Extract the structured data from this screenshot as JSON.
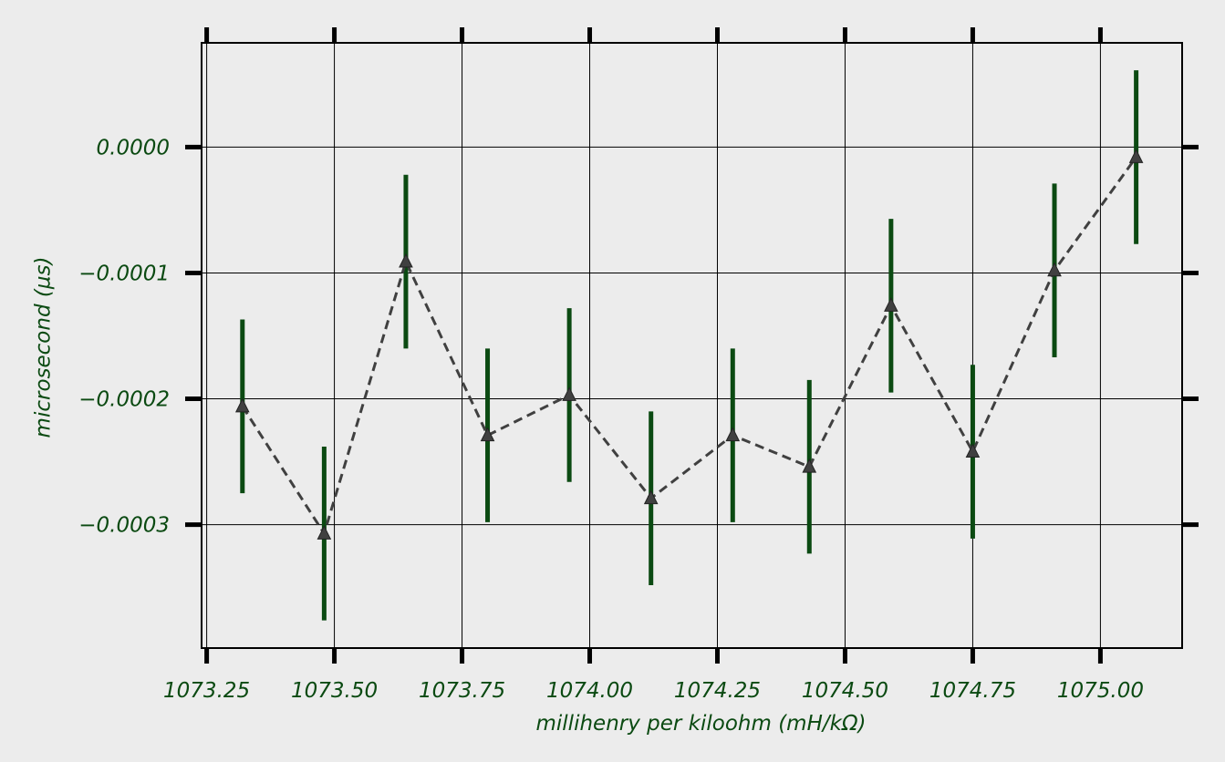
{
  "chart_data": {
    "type": "line",
    "title": "",
    "xlabel": "millihenry per kiloohm (mH/kΩ)",
    "ylabel": "microsecond (µs)",
    "xlim": [
      1073.24,
      1075.16
    ],
    "ylim": [
      -0.000398,
      8.28e-05
    ],
    "x_ticks": [
      1073.25,
      1073.5,
      1073.75,
      1074.0,
      1074.25,
      1074.5,
      1074.75,
      1075.0
    ],
    "x_tick_labels": [
      "1073.25",
      "1073.50",
      "1073.75",
      "1074.00",
      "1074.25",
      "1074.50",
      "1074.75",
      "1075.00"
    ],
    "y_ticks": [
      0.0,
      -0.0001,
      -0.0002,
      -0.0003
    ],
    "y_tick_labels": [
      "0.0000",
      "−0.0001",
      "−0.0002",
      "−0.0003"
    ],
    "grid": true,
    "series": [
      {
        "marker": "triangle",
        "line_style": "dashed",
        "x": [
          1073.32,
          1073.48,
          1073.64,
          1073.8,
          1073.96,
          1074.12,
          1074.28,
          1074.43,
          1074.59,
          1074.75,
          1074.91,
          1075.07
        ],
        "y": [
          -0.000206,
          -0.000307,
          -9.1e-05,
          -0.000229,
          -0.000197,
          -0.000279,
          -0.000229,
          -0.000254,
          -0.000126,
          -0.000242,
          -9.8e-05,
          -8e-06
        ],
        "yerr": [
          6.9e-05,
          6.9e-05,
          6.9e-05,
          6.9e-05,
          6.9e-05,
          6.9e-05,
          6.9e-05,
          6.9e-05,
          6.9e-05,
          6.9e-05,
          6.9e-05,
          6.9e-05
        ]
      }
    ],
    "colors": {
      "background": "#ececec",
      "errorbar": "#0b4a12",
      "line": "#404040",
      "text": "#0b4a12",
      "grid": "#000000",
      "tick": "#000000"
    }
  }
}
